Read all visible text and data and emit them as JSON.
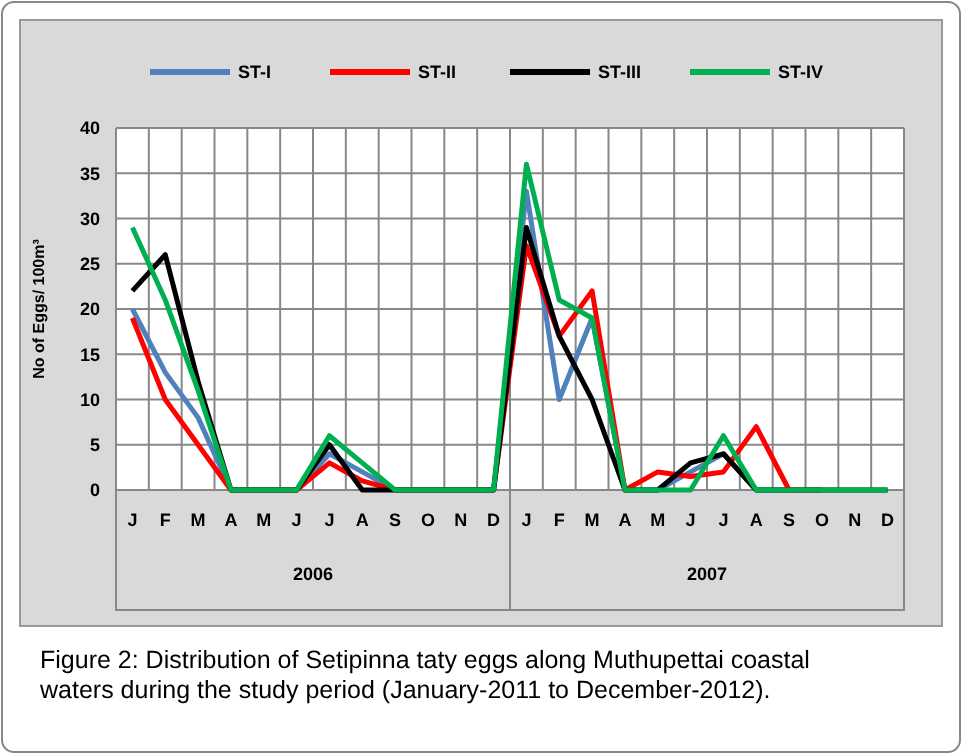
{
  "chart_data": {
    "type": "line",
    "ylabel": "No of Eggs/ 100m³",
    "categories": [
      "J",
      "F",
      "M",
      "A",
      "M",
      "J",
      "J",
      "A",
      "S",
      "O",
      "N",
      "D",
      "J",
      "F",
      "M",
      "A",
      "M",
      "J",
      "J",
      "A",
      "S",
      "O",
      "N",
      "D"
    ],
    "series": [
      {
        "name": "ST-I",
        "color": "#4f81bd",
        "values": [
          20,
          13,
          8,
          0,
          0,
          0,
          4,
          2,
          0,
          0,
          0,
          0,
          33,
          10,
          19,
          0,
          0,
          2,
          4,
          0,
          0,
          null,
          null,
          null
        ]
      },
      {
        "name": "ST-II",
        "color": "#ff0000",
        "values": [
          19,
          10,
          5,
          0,
          0,
          0,
          3,
          1,
          0,
          0,
          0,
          0,
          27,
          17,
          22,
          0,
          2,
          1.5,
          2,
          7,
          0,
          0,
          null,
          null
        ]
      },
      {
        "name": "ST-III",
        "color": "#000000",
        "values": [
          22,
          26,
          12,
          0,
          0,
          0,
          5,
          0,
          0,
          0,
          0,
          0,
          29,
          17,
          10,
          0,
          0,
          3,
          4,
          0,
          0,
          0,
          0,
          0
        ]
      },
      {
        "name": "ST-IV",
        "color": "#00b050",
        "values": [
          29,
          21,
          11,
          0,
          0,
          0,
          6,
          3,
          0,
          0,
          0,
          0,
          36,
          21,
          19,
          0,
          0,
          0,
          6,
          0,
          0,
          0,
          0,
          0
        ]
      }
    ],
    "ylim": [
      0,
      40
    ],
    "yticks": [
      0,
      5,
      10,
      15,
      20,
      25,
      30,
      35,
      40
    ],
    "grid": true,
    "legend": "top",
    "marker": "none",
    "line_style": "solid",
    "annotations": [
      "2006",
      "2007",
      "Figure 2: Distribution of Setipinna taty eggs along Muthupettai coastal waters during the study period (January-2011 to December-2012)."
    ]
  }
}
